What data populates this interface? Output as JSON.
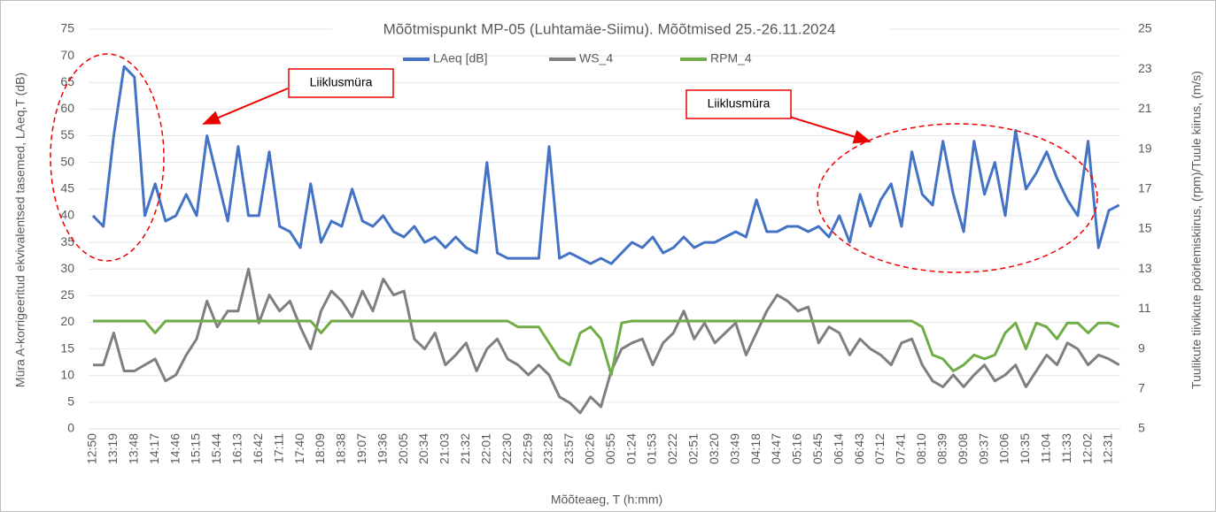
{
  "chart_data": {
    "type": "line",
    "title": "Mõõtmispunkt MP-05 (Luhtamäe-Siimu). Mõõtmised 25.-26.11.2024",
    "xlabel": "Mõõteaeg, T (h:mm)",
    "ylabel": "Müra A-korrigeeritud ekvivalentsed tasemed, LAeq,T (dB)",
    "y2label": "Tuulikute tiivikute pöörlemiskiirus, (rpm)/Tuule kiirus, (m/s)",
    "annotations": [
      "Liiklusmüra",
      "Liiklusmüra"
    ],
    "categories": [
      "12:50",
      null,
      "13:19",
      null,
      "13:48",
      null,
      "14:17",
      null,
      "14:46",
      null,
      "15:15",
      null,
      "15:44",
      null,
      "16:13",
      null,
      "16:42",
      null,
      "17:11",
      null,
      "17:40",
      null,
      "18:09",
      null,
      "18:38",
      null,
      "19:07",
      null,
      "19:36",
      null,
      "20:05",
      null,
      "20:34",
      null,
      "21:03",
      null,
      "21:32",
      null,
      "22:01",
      null,
      "22:30",
      null,
      "22:59",
      null,
      "23:28",
      null,
      "23:57",
      null,
      "00:26",
      null,
      "00:55",
      null,
      "01:24",
      null,
      "01:53",
      null,
      "02:22",
      null,
      "02:51",
      null,
      "03:20",
      null,
      "03:49",
      null,
      "04:18",
      null,
      "04:47",
      null,
      "05:16",
      null,
      "05:45",
      null,
      "06:14",
      null,
      "06:43",
      null,
      "07:12",
      null,
      "07:41",
      null,
      "08:10",
      null,
      "08:39",
      null,
      "09:08",
      null,
      "09:37",
      null,
      "10:06",
      null,
      "10:35",
      null,
      "11:04",
      null,
      "11:33",
      null,
      "12:02",
      null,
      "12:31",
      null
    ],
    "series": [
      {
        "name": "LAeq [dB]",
        "color": "#4472c4",
        "axis": "y",
        "values": [
          40,
          38,
          55,
          68,
          66,
          40,
          46,
          39,
          40,
          44,
          40,
          55,
          47,
          39,
          53,
          40,
          40,
          52,
          38,
          37,
          34,
          46,
          35,
          39,
          38,
          45,
          39,
          38,
          40,
          37,
          36,
          38,
          35,
          36,
          34,
          36,
          34,
          33,
          50,
          33,
          32,
          32,
          32,
          32,
          53,
          32,
          33,
          32,
          31,
          32,
          31,
          33,
          35,
          34,
          36,
          33,
          34,
          36,
          34,
          35,
          35,
          36,
          37,
          36,
          43,
          37,
          37,
          38,
          38,
          37,
          38,
          36,
          40,
          35,
          44,
          38,
          43,
          46,
          38,
          52,
          44,
          42,
          54,
          44,
          37,
          54,
          44,
          50,
          40,
          56,
          45,
          48,
          52,
          47,
          43,
          40,
          54,
          34,
          41,
          42
        ]
      },
      {
        "name": "WS_4",
        "color": "#7f7f7f",
        "axis": "y2",
        "values": [
          8.2,
          8.2,
          9.8,
          7.9,
          7.9,
          8.2,
          8.5,
          7.4,
          7.7,
          8.7,
          9.5,
          11.4,
          10.1,
          10.9,
          10.9,
          13.0,
          10.3,
          11.7,
          10.9,
          11.4,
          10.1,
          9.0,
          10.9,
          11.9,
          11.4,
          10.6,
          11.9,
          10.9,
          12.5,
          11.7,
          11.9,
          9.5,
          9.0,
          9.8,
          8.2,
          8.7,
          9.3,
          7.9,
          9.0,
          9.5,
          8.5,
          8.2,
          7.7,
          8.2,
          7.7,
          6.6,
          6.3,
          5.8,
          6.6,
          6.1,
          7.9,
          9.0,
          9.3,
          9.5,
          8.2,
          9.3,
          9.8,
          10.9,
          9.5,
          10.3,
          9.3,
          9.8,
          10.3,
          8.7,
          9.8,
          10.9,
          11.7,
          11.4,
          10.9,
          11.1,
          9.3,
          10.1,
          9.8,
          8.7,
          9.5,
          9.0,
          8.7,
          8.2,
          9.3,
          9.5,
          8.2,
          7.4,
          7.1,
          7.7,
          7.1,
          7.7,
          8.2,
          7.4,
          7.7,
          8.2,
          7.1,
          7.9,
          8.7,
          8.2,
          9.3,
          9.0,
          8.2,
          8.7,
          8.5,
          8.2
        ]
      },
      {
        "name": "RPM_4",
        "color": "#70ad47",
        "axis": "y2",
        "values": [
          10.4,
          10.4,
          10.4,
          10.4,
          10.4,
          10.4,
          9.8,
          10.4,
          10.4,
          10.4,
          10.4,
          10.4,
          10.4,
          10.4,
          10.4,
          10.4,
          10.4,
          10.4,
          10.4,
          10.4,
          10.4,
          10.4,
          9.8,
          10.4,
          10.4,
          10.4,
          10.4,
          10.4,
          10.4,
          10.4,
          10.4,
          10.4,
          10.4,
          10.4,
          10.4,
          10.4,
          10.4,
          10.4,
          10.4,
          10.4,
          10.4,
          10.1,
          10.1,
          10.1,
          9.3,
          8.5,
          8.2,
          9.8,
          10.1,
          9.5,
          7.7,
          10.3,
          10.4,
          10.4,
          10.4,
          10.4,
          10.4,
          10.4,
          10.4,
          10.4,
          10.4,
          10.4,
          10.4,
          10.4,
          10.4,
          10.4,
          10.4,
          10.4,
          10.4,
          10.4,
          10.4,
          10.4,
          10.4,
          10.4,
          10.4,
          10.4,
          10.4,
          10.4,
          10.4,
          10.4,
          10.1,
          8.7,
          8.5,
          7.9,
          8.2,
          8.7,
          8.5,
          8.7,
          9.8,
          10.3,
          9.0,
          10.3,
          10.1,
          9.5,
          10.3,
          10.3,
          9.8,
          10.3,
          10.3,
          10.1
        ]
      }
    ],
    "ylim": [
      0,
      75
    ],
    "yticks": [
      0,
      5,
      10,
      15,
      20,
      25,
      30,
      35,
      40,
      45,
      50,
      55,
      60,
      65,
      70,
      75
    ],
    "y2lim": [
      5,
      25
    ],
    "y2ticks": [
      5,
      7,
      9,
      11,
      13,
      15,
      17,
      19,
      21,
      23,
      25
    ],
    "grid": true,
    "legend": "top"
  }
}
